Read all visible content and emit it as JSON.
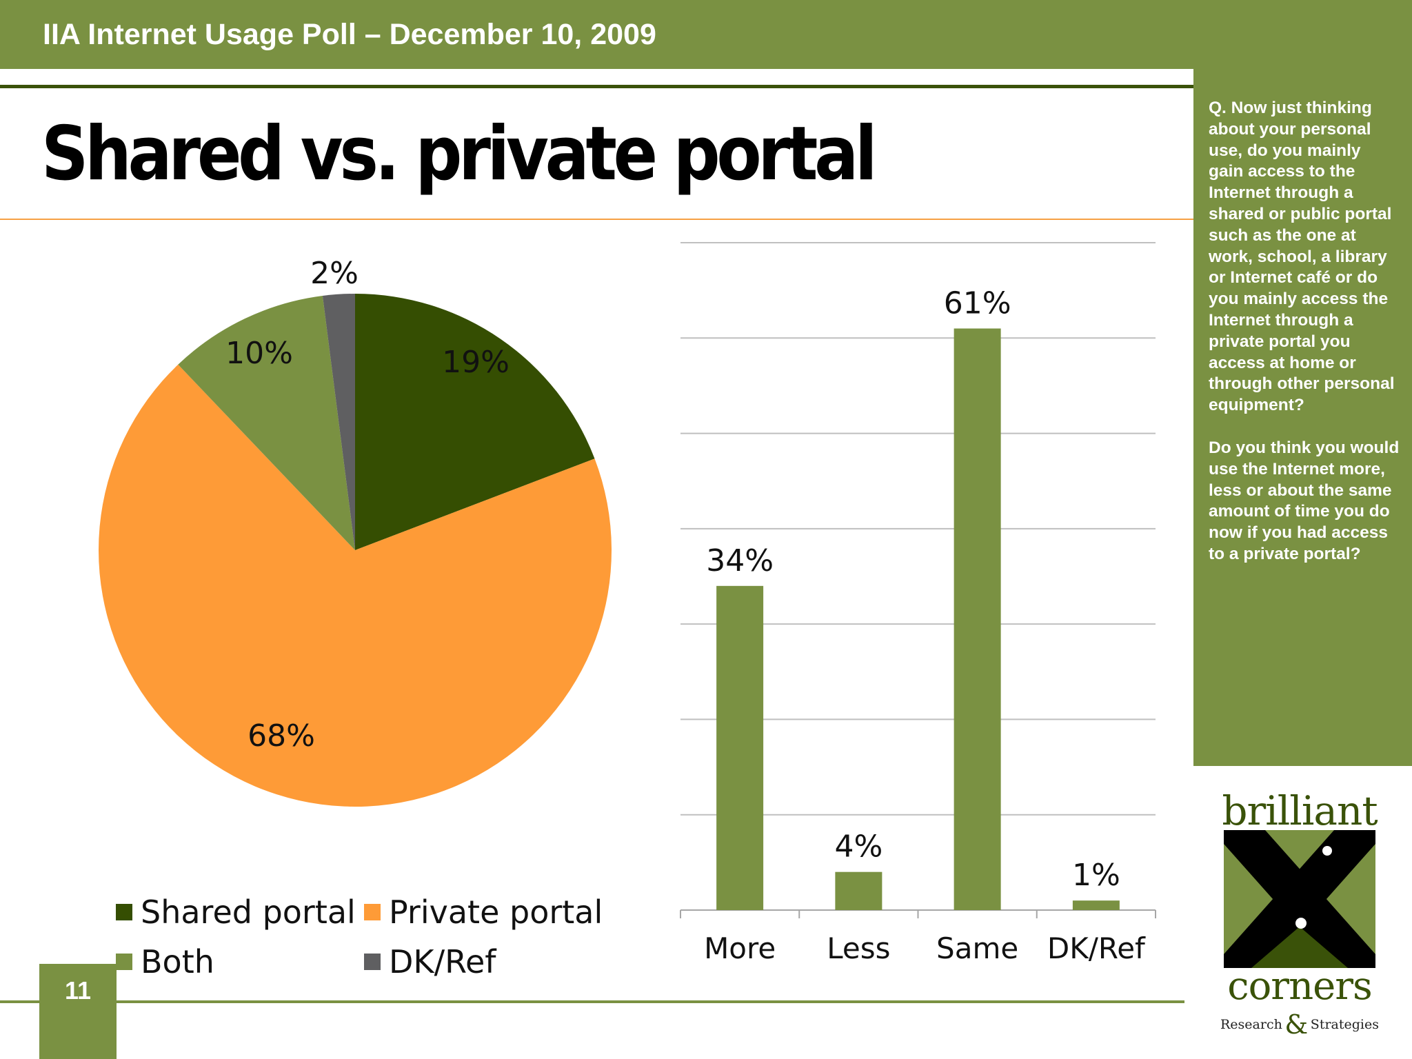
{
  "header": {
    "title": "IIA Internet Usage Poll – December 10, 2009"
  },
  "slide": {
    "title": "Shared vs. private portal",
    "page_number": "11"
  },
  "side_panel": {
    "question_1": "Q. Now just thinking about your personal use, do you mainly gain access to the Internet through a shared or public portal such as the one at work, school, a library or Internet café or do you mainly access the Internet through a private portal you access at home or through other personal equipment?",
    "question_2": "Do you think you would use the Internet more, less or about the same amount of time you do now if you had access to a private portal?"
  },
  "logo": {
    "top_text": "brilliant",
    "bottom_text": "corners",
    "sub_left": "Research",
    "sub_amp": "&",
    "sub_right": "Strategies"
  },
  "colors": {
    "header_green": "#7a9142",
    "dark_green": "#354e02",
    "orange": "#fe9b37",
    "light_green": "#7a9142",
    "grey": "#5f5f61",
    "bar_green": "#7a9142",
    "accent_orange": "#f7a043"
  },
  "chart_data": [
    {
      "type": "pie",
      "categories": [
        "Shared portal",
        "Private portal",
        "Both",
        "DK/Ref"
      ],
      "values": [
        19,
        68,
        10,
        2
      ],
      "labels": [
        "19%",
        "68%",
        "10%",
        "2%"
      ],
      "colors": [
        "#354e02",
        "#fe9b37",
        "#7a9142",
        "#5f5f61"
      ],
      "legend": [
        "Shared portal",
        "Private portal",
        "Both",
        "DK/Ref"
      ],
      "legend_position": "bottom"
    },
    {
      "type": "bar",
      "categories": [
        "More",
        "Less",
        "Same",
        "DK/Ref"
      ],
      "values": [
        34,
        4,
        61,
        1
      ],
      "labels": [
        "34%",
        "4%",
        "61%",
        "1%"
      ],
      "ylim": [
        0,
        70
      ],
      "grid": true,
      "color": "#7a9142"
    }
  ]
}
